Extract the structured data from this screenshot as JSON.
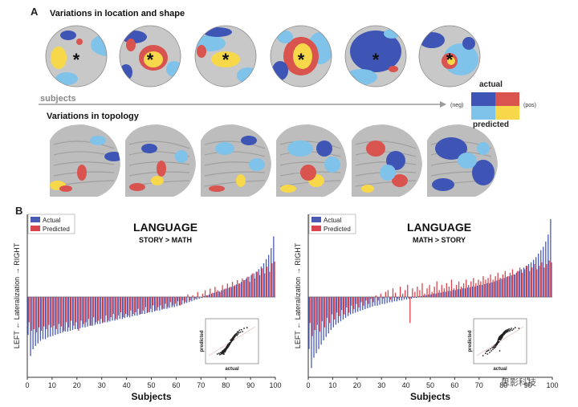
{
  "panel_a": {
    "label": "A",
    "title_location": "Variations in location and shape",
    "title_topology": "Variations in topology",
    "subjects_label": "subjects",
    "marker": "*",
    "legend": {
      "actual_label": "actual",
      "predicted_label": "predicted",
      "neg_label": "(neg)",
      "pos_label": "(pos)",
      "colors": {
        "actual_neg": "#3e55b5",
        "actual_pos": "#d9534f",
        "predicted_neg": "#7fc3ea",
        "predicted_pos": "#f7d84a"
      }
    }
  },
  "panel_b": {
    "label": "B",
    "y_axis_label": "LEFT ← Lateralization → RIGHT",
    "x_axis_label": "Subjects",
    "inset_xlabel": "actual",
    "inset_ylabel": "predicted",
    "series_colors": {
      "actual": "#4a5bb5",
      "predicted": "#d9454e"
    }
  },
  "chart_data": [
    {
      "type": "bar",
      "title": "LANGUAGE",
      "subtitle": "STORY > MATH",
      "xlabel": "Subjects",
      "ylabel": "LEFT ← Lateralization → RIGHT",
      "x_ticks": [
        0,
        10,
        20,
        30,
        40,
        50,
        60,
        70,
        80,
        90,
        100
      ],
      "xlim": [
        0,
        100
      ],
      "ylim": [
        -1,
        1
      ],
      "legend": "top-left",
      "series": [
        {
          "name": "Actual",
          "values": [
            -0.45,
            -0.7,
            -0.62,
            -0.58,
            -0.55,
            -0.52,
            -0.5,
            -0.5,
            -0.48,
            -0.47,
            -0.46,
            -0.45,
            -0.44,
            -0.43,
            -0.42,
            -0.41,
            -0.41,
            -0.4,
            -0.39,
            -0.38,
            -0.38,
            -0.37,
            -0.36,
            -0.36,
            -0.35,
            -0.34,
            -0.34,
            -0.33,
            -0.32,
            -0.32,
            -0.31,
            -0.3,
            -0.3,
            -0.29,
            -0.28,
            -0.28,
            -0.27,
            -0.26,
            -0.26,
            -0.25,
            -0.24,
            -0.24,
            -0.23,
            -0.22,
            -0.22,
            -0.21,
            -0.2,
            -0.2,
            -0.19,
            -0.18,
            -0.18,
            -0.17,
            -0.16,
            -0.16,
            -0.15,
            -0.14,
            -0.14,
            -0.13,
            -0.12,
            -0.12,
            -0.11,
            -0.1,
            -0.09,
            -0.08,
            -0.07,
            -0.06,
            -0.05,
            -0.04,
            -0.03,
            -0.02,
            -0.01,
            0.01,
            0.02,
            0.03,
            0.04,
            0.05,
            0.06,
            0.07,
            0.08,
            0.09,
            0.1,
            0.11,
            0.12,
            0.13,
            0.15,
            0.16,
            0.18,
            0.2,
            0.22,
            0.24,
            0.26,
            0.28,
            0.3,
            0.33,
            0.36,
            0.4,
            0.45,
            0.5,
            0.58,
            0.72
          ]
        },
        {
          "name": "Predicted",
          "values": [
            -0.3,
            -0.4,
            -0.38,
            -0.42,
            -0.36,
            -0.4,
            -0.35,
            -0.38,
            -0.33,
            -0.36,
            -0.34,
            -0.38,
            -0.32,
            -0.35,
            -0.4,
            -0.3,
            -0.36,
            -0.28,
            -0.34,
            -0.3,
            -0.4,
            -0.28,
            -0.32,
            -0.3,
            -0.26,
            -0.34,
            -0.24,
            -0.3,
            -0.28,
            -0.26,
            -0.3,
            -0.22,
            -0.28,
            -0.24,
            -0.2,
            -0.26,
            -0.22,
            -0.18,
            -0.24,
            -0.2,
            -0.22,
            -0.16,
            -0.2,
            -0.18,
            -0.14,
            -0.2,
            -0.16,
            -0.12,
            -0.18,
            -0.14,
            -0.1,
            -0.16,
            -0.12,
            -0.1,
            -0.14,
            -0.08,
            -0.12,
            -0.06,
            -0.1,
            -0.08,
            -0.05,
            -0.1,
            -0.04,
            -0.06,
            0.03,
            -0.04,
            0.02,
            -0.02,
            0.06,
            0.0,
            0.04,
            0.08,
            0.02,
            0.1,
            0.05,
            0.12,
            0.08,
            0.06,
            0.14,
            0.1,
            0.16,
            0.12,
            0.18,
            0.14,
            0.2,
            0.16,
            0.22,
            0.2,
            0.24,
            0.18,
            0.28,
            0.22,
            0.3,
            0.26,
            0.34,
            0.28,
            0.36,
            0.3,
            0.4,
            0.42
          ]
        }
      ],
      "inset": {
        "xlabel": "actual",
        "ylabel": "predicted"
      }
    },
    {
      "type": "bar",
      "title": "LANGUAGE",
      "subtitle": "MATH > STORY",
      "xlabel": "Subjects",
      "ylabel": "LEFT ← Lateralization → RIGHT",
      "x_ticks": [
        0,
        10,
        20,
        30,
        40,
        50,
        60,
        70,
        80,
        90,
        100
      ],
      "xlim": [
        0,
        100
      ],
      "ylim": [
        -1,
        1
      ],
      "legend": "top-left",
      "series": [
        {
          "name": "Actual",
          "values": [
            -0.6,
            -0.82,
            -0.7,
            -0.65,
            -0.6,
            -0.55,
            -0.5,
            -0.46,
            -0.42,
            -0.38,
            -0.35,
            -0.32,
            -0.3,
            -0.28,
            -0.26,
            -0.24,
            -0.22,
            -0.2,
            -0.19,
            -0.18,
            -0.17,
            -0.16,
            -0.15,
            -0.14,
            -0.13,
            -0.12,
            -0.11,
            -0.1,
            -0.1,
            -0.09,
            -0.08,
            -0.08,
            -0.07,
            -0.06,
            -0.06,
            -0.05,
            -0.05,
            -0.04,
            -0.04,
            -0.03,
            -0.03,
            -0.02,
            -0.02,
            -0.01,
            -0.01,
            0.01,
            0.01,
            0.02,
            0.02,
            0.03,
            0.03,
            0.04,
            0.04,
            0.05,
            0.05,
            0.06,
            0.06,
            0.07,
            0.07,
            0.08,
            0.08,
            0.09,
            0.09,
            0.1,
            0.1,
            0.11,
            0.11,
            0.12,
            0.12,
            0.13,
            0.14,
            0.14,
            0.15,
            0.16,
            0.16,
            0.17,
            0.18,
            0.19,
            0.2,
            0.21,
            0.22,
            0.23,
            0.24,
            0.25,
            0.26,
            0.28,
            0.3,
            0.32,
            0.34,
            0.36,
            0.38,
            0.4,
            0.43,
            0.46,
            0.5,
            0.54,
            0.58,
            0.64,
            0.72,
            0.9
          ]
        },
        {
          "name": "Predicted",
          "values": [
            -0.3,
            -0.45,
            -0.38,
            -0.32,
            -0.4,
            -0.28,
            -0.35,
            -0.24,
            -0.3,
            -0.2,
            -0.26,
            -0.18,
            -0.22,
            -0.15,
            -0.2,
            -0.12,
            -0.18,
            -0.1,
            -0.14,
            -0.08,
            -0.12,
            -0.06,
            -0.1,
            -0.04,
            -0.08,
            -0.02,
            -0.06,
            0.02,
            -0.04,
            0.04,
            -0.02,
            0.06,
            0.08,
            -0.03,
            0.1,
            0.05,
            -0.02,
            0.12,
            0.04,
            0.08,
            0.14,
            -0.3,
            0.1,
            0.06,
            0.12,
            0.08,
            0.16,
            0.04,
            0.1,
            0.14,
            0.06,
            0.12,
            0.18,
            0.08,
            0.14,
            0.1,
            0.16,
            0.12,
            0.2,
            0.1,
            0.14,
            0.18,
            0.12,
            0.16,
            0.2,
            0.14,
            0.18,
            0.22,
            0.16,
            0.2,
            0.18,
            0.24,
            0.2,
            0.22,
            0.26,
            0.2,
            0.24,
            0.28,
            0.22,
            0.26,
            0.3,
            0.24,
            0.28,
            0.32,
            0.26,
            0.3,
            0.34,
            0.28,
            0.32,
            0.36,
            0.3,
            0.34,
            0.38,
            0.32,
            0.36,
            0.4,
            0.34,
            0.38,
            0.42,
            0.4
          ]
        }
      ],
      "inset": {
        "xlabel": "actual",
        "ylabel": "predicted"
      }
    }
  ],
  "watermark": "思影科技"
}
